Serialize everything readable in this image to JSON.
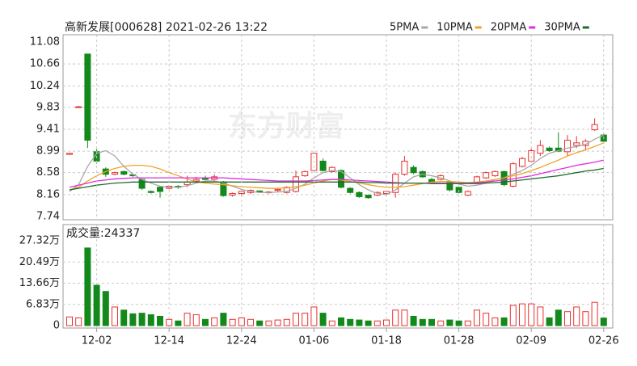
{
  "chart_data": [
    {
      "type": "candlestick",
      "title": "高新发展[000628] 2021-02-26 13:22",
      "watermark": "东方财富",
      "ylim": [
        7.74,
        11.08
      ],
      "yticks": [
        7.74,
        8.16,
        8.58,
        8.99,
        9.41,
        9.83,
        10.24,
        10.66,
        11.08
      ],
      "grid": true,
      "up_color": "#e8312f",
      "down_color": "#13891b",
      "open": [
        8.93,
        9.83,
        10.85,
        8.98,
        8.65,
        8.55,
        8.6,
        8.54,
        8.45,
        8.22,
        8.3,
        8.28,
        8.32,
        8.35,
        8.42,
        8.48,
        8.45,
        8.4,
        8.15,
        8.18,
        8.2,
        8.23,
        8.2,
        8.24,
        8.2,
        8.22,
        8.52,
        8.62,
        8.8,
        8.6,
        8.62,
        8.28,
        8.2,
        8.15,
        8.15,
        8.18,
        8.2,
        8.55,
        8.68,
        8.6,
        8.45,
        8.45,
        8.4,
        8.3,
        8.15,
        8.38,
        8.48,
        8.52,
        8.6,
        8.32,
        8.7,
        8.8,
        8.95,
        9.05,
        9.05,
        8.98,
        9.1,
        9.1,
        9.4,
        9.3
      ],
      "high": [
        8.95,
        9.86,
        10.85,
        9.03,
        8.68,
        8.6,
        8.62,
        8.56,
        8.47,
        8.24,
        8.32,
        8.34,
        8.34,
        8.52,
        8.5,
        8.52,
        8.55,
        8.42,
        8.2,
        8.25,
        8.26,
        8.24,
        8.23,
        8.27,
        8.32,
        8.62,
        8.62,
        8.99,
        8.85,
        8.7,
        8.64,
        8.3,
        8.22,
        8.16,
        8.22,
        8.25,
        8.58,
        8.9,
        8.72,
        8.62,
        8.48,
        8.55,
        8.42,
        8.32,
        8.24,
        8.52,
        8.6,
        8.62,
        8.62,
        8.78,
        8.88,
        9.05,
        9.2,
        9.08,
        9.35,
        9.3,
        9.28,
        9.22,
        9.62,
        9.32
      ],
      "low": [
        8.92,
        9.83,
        9.05,
        8.75,
        8.5,
        8.53,
        8.53,
        8.5,
        8.25,
        8.18,
        8.1,
        8.26,
        8.27,
        8.3,
        8.4,
        8.44,
        8.43,
        8.12,
        8.12,
        8.12,
        8.17,
        8.19,
        8.18,
        8.21,
        8.18,
        8.2,
        8.5,
        8.6,
        8.6,
        8.58,
        8.28,
        8.18,
        8.1,
        8.08,
        8.13,
        8.15,
        8.1,
        8.52,
        8.55,
        8.48,
        8.38,
        8.43,
        8.22,
        8.18,
        8.13,
        8.36,
        8.46,
        8.5,
        8.32,
        8.3,
        8.68,
        8.78,
        8.9,
        8.98,
        8.97,
        8.9,
        9.05,
        9.0,
        9.38,
        9.16
      ],
      "close": [
        8.95,
        9.84,
        9.2,
        8.8,
        8.55,
        8.58,
        8.55,
        8.52,
        8.28,
        8.2,
        8.22,
        8.32,
        8.3,
        8.4,
        8.45,
        8.45,
        8.5,
        8.14,
        8.18,
        8.22,
        8.24,
        8.21,
        8.21,
        8.26,
        8.3,
        8.5,
        8.6,
        8.95,
        8.62,
        8.68,
        8.3,
        8.2,
        8.12,
        8.1,
        8.2,
        8.22,
        8.55,
        8.8,
        8.58,
        8.5,
        8.4,
        8.52,
        8.25,
        8.2,
        8.22,
        8.5,
        8.58,
        8.6,
        8.35,
        8.75,
        8.85,
        9.0,
        9.1,
        9.0,
        8.99,
        9.2,
        9.15,
        9.18,
        9.5,
        9.18
      ],
      "series": [
        {
          "name": "5PMA",
          "color": "#a8a8a8",
          "values": [
            8.22,
            8.35,
            8.7,
            8.95,
            9.0,
            8.9,
            8.7,
            8.55,
            8.45,
            8.38,
            8.32,
            8.3,
            8.3,
            8.33,
            8.38,
            8.42,
            8.42,
            8.38,
            8.32,
            8.26,
            8.22,
            8.2,
            8.2,
            8.21,
            8.22,
            8.28,
            8.36,
            8.48,
            8.58,
            8.62,
            8.6,
            8.48,
            8.35,
            8.25,
            8.18,
            8.16,
            8.25,
            8.38,
            8.5,
            8.55,
            8.52,
            8.48,
            8.42,
            8.36,
            8.32,
            8.34,
            8.38,
            8.45,
            8.48,
            8.55,
            8.62,
            8.72,
            8.85,
            8.95,
            9.0,
            9.05,
            9.08,
            9.12,
            9.22,
            9.3
          ]
        },
        {
          "name": "10PMA",
          "color": "#f0a427",
          "values": [
            8.25,
            8.3,
            8.42,
            8.52,
            8.6,
            8.66,
            8.7,
            8.72,
            8.72,
            8.7,
            8.65,
            8.58,
            8.52,
            8.46,
            8.4,
            8.38,
            8.36,
            8.35,
            8.33,
            8.31,
            8.3,
            8.29,
            8.28,
            8.28,
            8.29,
            8.31,
            8.34,
            8.38,
            8.42,
            8.45,
            8.44,
            8.41,
            8.38,
            8.35,
            8.32,
            8.3,
            8.3,
            8.31,
            8.34,
            8.37,
            8.4,
            8.41,
            8.41,
            8.4,
            8.39,
            8.4,
            8.42,
            8.45,
            8.48,
            8.52,
            8.56,
            8.62,
            8.68,
            8.75,
            8.82,
            8.9,
            8.96,
            9.02,
            9.08,
            9.15
          ]
        },
        {
          "name": "20PMA",
          "color": "#e12ce0",
          "values": [
            8.3,
            8.34,
            8.38,
            8.42,
            8.44,
            8.46,
            8.47,
            8.48,
            8.48,
            8.48,
            8.48,
            8.48,
            8.48,
            8.48,
            8.48,
            8.48,
            8.48,
            8.48,
            8.47,
            8.46,
            8.45,
            8.44,
            8.43,
            8.42,
            8.42,
            8.42,
            8.42,
            8.43,
            8.44,
            8.45,
            8.45,
            8.44,
            8.43,
            8.42,
            8.41,
            8.4,
            8.39,
            8.38,
            8.38,
            8.38,
            8.38,
            8.38,
            8.38,
            8.38,
            8.38,
            8.39,
            8.4,
            8.42,
            8.44,
            8.46,
            8.49,
            8.52,
            8.56,
            8.6,
            8.64,
            8.68,
            8.72,
            8.75,
            8.78,
            8.82
          ]
        },
        {
          "name": "30PMA",
          "color": "#1c6e2c",
          "values": [
            8.25,
            8.28,
            8.31,
            8.34,
            8.36,
            8.38,
            8.39,
            8.4,
            8.4,
            8.4,
            8.4,
            8.4,
            8.4,
            8.4,
            8.4,
            8.4,
            8.4,
            8.4,
            8.4,
            8.4,
            8.4,
            8.4,
            8.4,
            8.4,
            8.4,
            8.4,
            8.4,
            8.4,
            8.4,
            8.4,
            8.4,
            8.4,
            8.4,
            8.39,
            8.39,
            8.38,
            8.38,
            8.38,
            8.38,
            8.38,
            8.37,
            8.37,
            8.37,
            8.37,
            8.37,
            8.37,
            8.38,
            8.39,
            8.4,
            8.42,
            8.44,
            8.46,
            8.48,
            8.5,
            8.52,
            8.55,
            8.58,
            8.61,
            8.63,
            8.66
          ]
        }
      ]
    },
    {
      "type": "bar",
      "title": "成交量:24337",
      "ylim": [
        0,
        273200
      ],
      "yticks": [
        0,
        {
          "value": 68300,
          "label": "6.83万"
        },
        {
          "value": 136600,
          "label": "13.66万"
        },
        {
          "value": 204900,
          "label": "20.49万"
        },
        {
          "value": 273200,
          "label": "27.32万"
        }
      ],
      "categories": [
        null,
        null,
        null,
        "12-02",
        null,
        null,
        null,
        null,
        null,
        null,
        null,
        "12-14",
        null,
        null,
        null,
        null,
        null,
        null,
        null,
        "12-24",
        null,
        null,
        null,
        null,
        null,
        null,
        null,
        "01-06",
        null,
        null,
        null,
        null,
        null,
        null,
        null,
        "01-18",
        null,
        null,
        null,
        null,
        null,
        null,
        null,
        "01-28",
        null,
        null,
        null,
        null,
        null,
        null,
        null,
        "02-09",
        null,
        null,
        null,
        null,
        null,
        null,
        null,
        "02-26"
      ],
      "values": [
        28000,
        25000,
        250000,
        130000,
        110000,
        60000,
        50000,
        38000,
        40000,
        35000,
        30000,
        20000,
        15000,
        40000,
        35000,
        20000,
        25000,
        40000,
        20000,
        25000,
        20000,
        15000,
        15000,
        18000,
        20000,
        40000,
        40000,
        60000,
        40000,
        15000,
        25000,
        20000,
        18000,
        15000,
        15000,
        18000,
        50000,
        50000,
        30000,
        20000,
        20000,
        15000,
        18000,
        15000,
        15000,
        50000,
        40000,
        25000,
        25000,
        65000,
        70000,
        70000,
        60000,
        25000,
        50000,
        45000,
        60000,
        45000,
        75000,
        24337
      ]
    }
  ]
}
